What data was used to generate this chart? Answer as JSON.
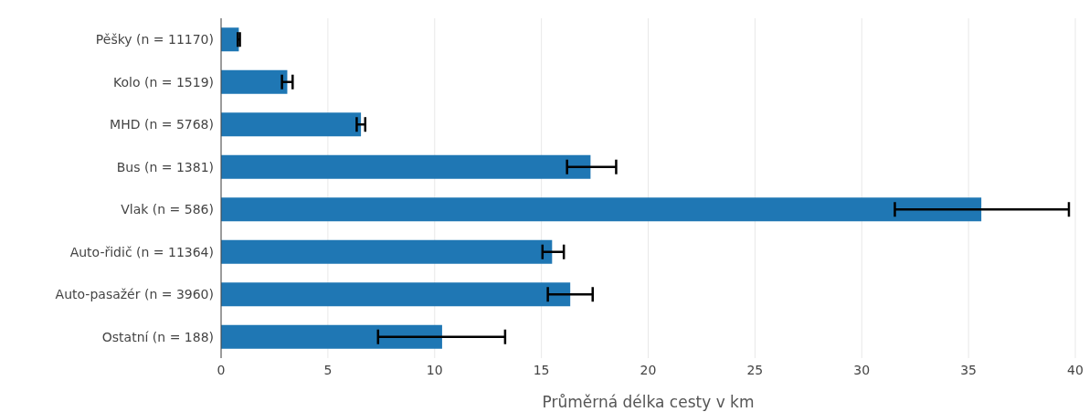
{
  "chart_data": {
    "type": "bar",
    "orientation": "horizontal",
    "xlabel": "Průměrná délka cesty v km",
    "categories": [
      "Pěšky (n = 11170)",
      "Kolo (n = 1519)",
      "MHD (n = 5768)",
      "Bus (n = 1381)",
      "Vlak (n = 586)",
      "Auto-řidič (n = 11364)",
      "Auto-pasažér (n = 3960)",
      "Ostatní (n = 188)"
    ],
    "values": [
      0.83,
      3.1,
      6.55,
      17.3,
      35.6,
      15.5,
      16.35,
      10.35
    ],
    "errors": [
      0.05,
      [
        2.85,
        3.35
      ],
      [
        6.35,
        6.75
      ],
      [
        16.2,
        18.5
      ],
      [
        31.55,
        39.7
      ],
      [
        15.05,
        16.05
      ],
      [
        15.3,
        17.4
      ],
      [
        7.35,
        13.3
      ]
    ],
    "color": "#1f77b4",
    "xlim": [
      0,
      40
    ],
    "xticks": [
      0,
      5,
      10,
      15,
      20,
      25,
      30,
      35,
      40
    ],
    "grid": "x"
  }
}
